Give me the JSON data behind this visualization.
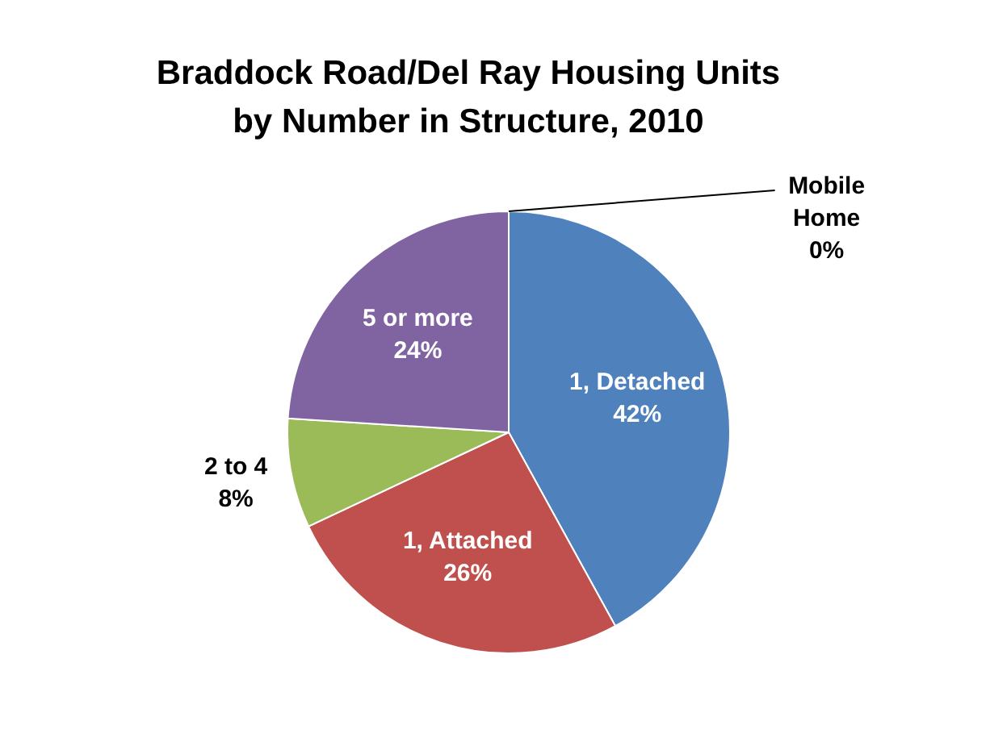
{
  "chart_data": {
    "type": "pie",
    "title": "Braddock Road/Del Ray Housing Units by Number in Structure, 2010",
    "categories": [
      "1, Detached",
      "1, Attached",
      "2 to 4",
      "5 or more",
      "Mobile Home"
    ],
    "values": [
      42,
      26,
      8,
      24,
      0
    ],
    "value_labels": [
      "42%",
      "26%",
      "8%",
      "24%",
      "0%"
    ],
    "colors": [
      "#4f81bd",
      "#c0504d",
      "#9bbb59",
      "#8064a2",
      "#4bacc6"
    ],
    "legend": false
  }
}
